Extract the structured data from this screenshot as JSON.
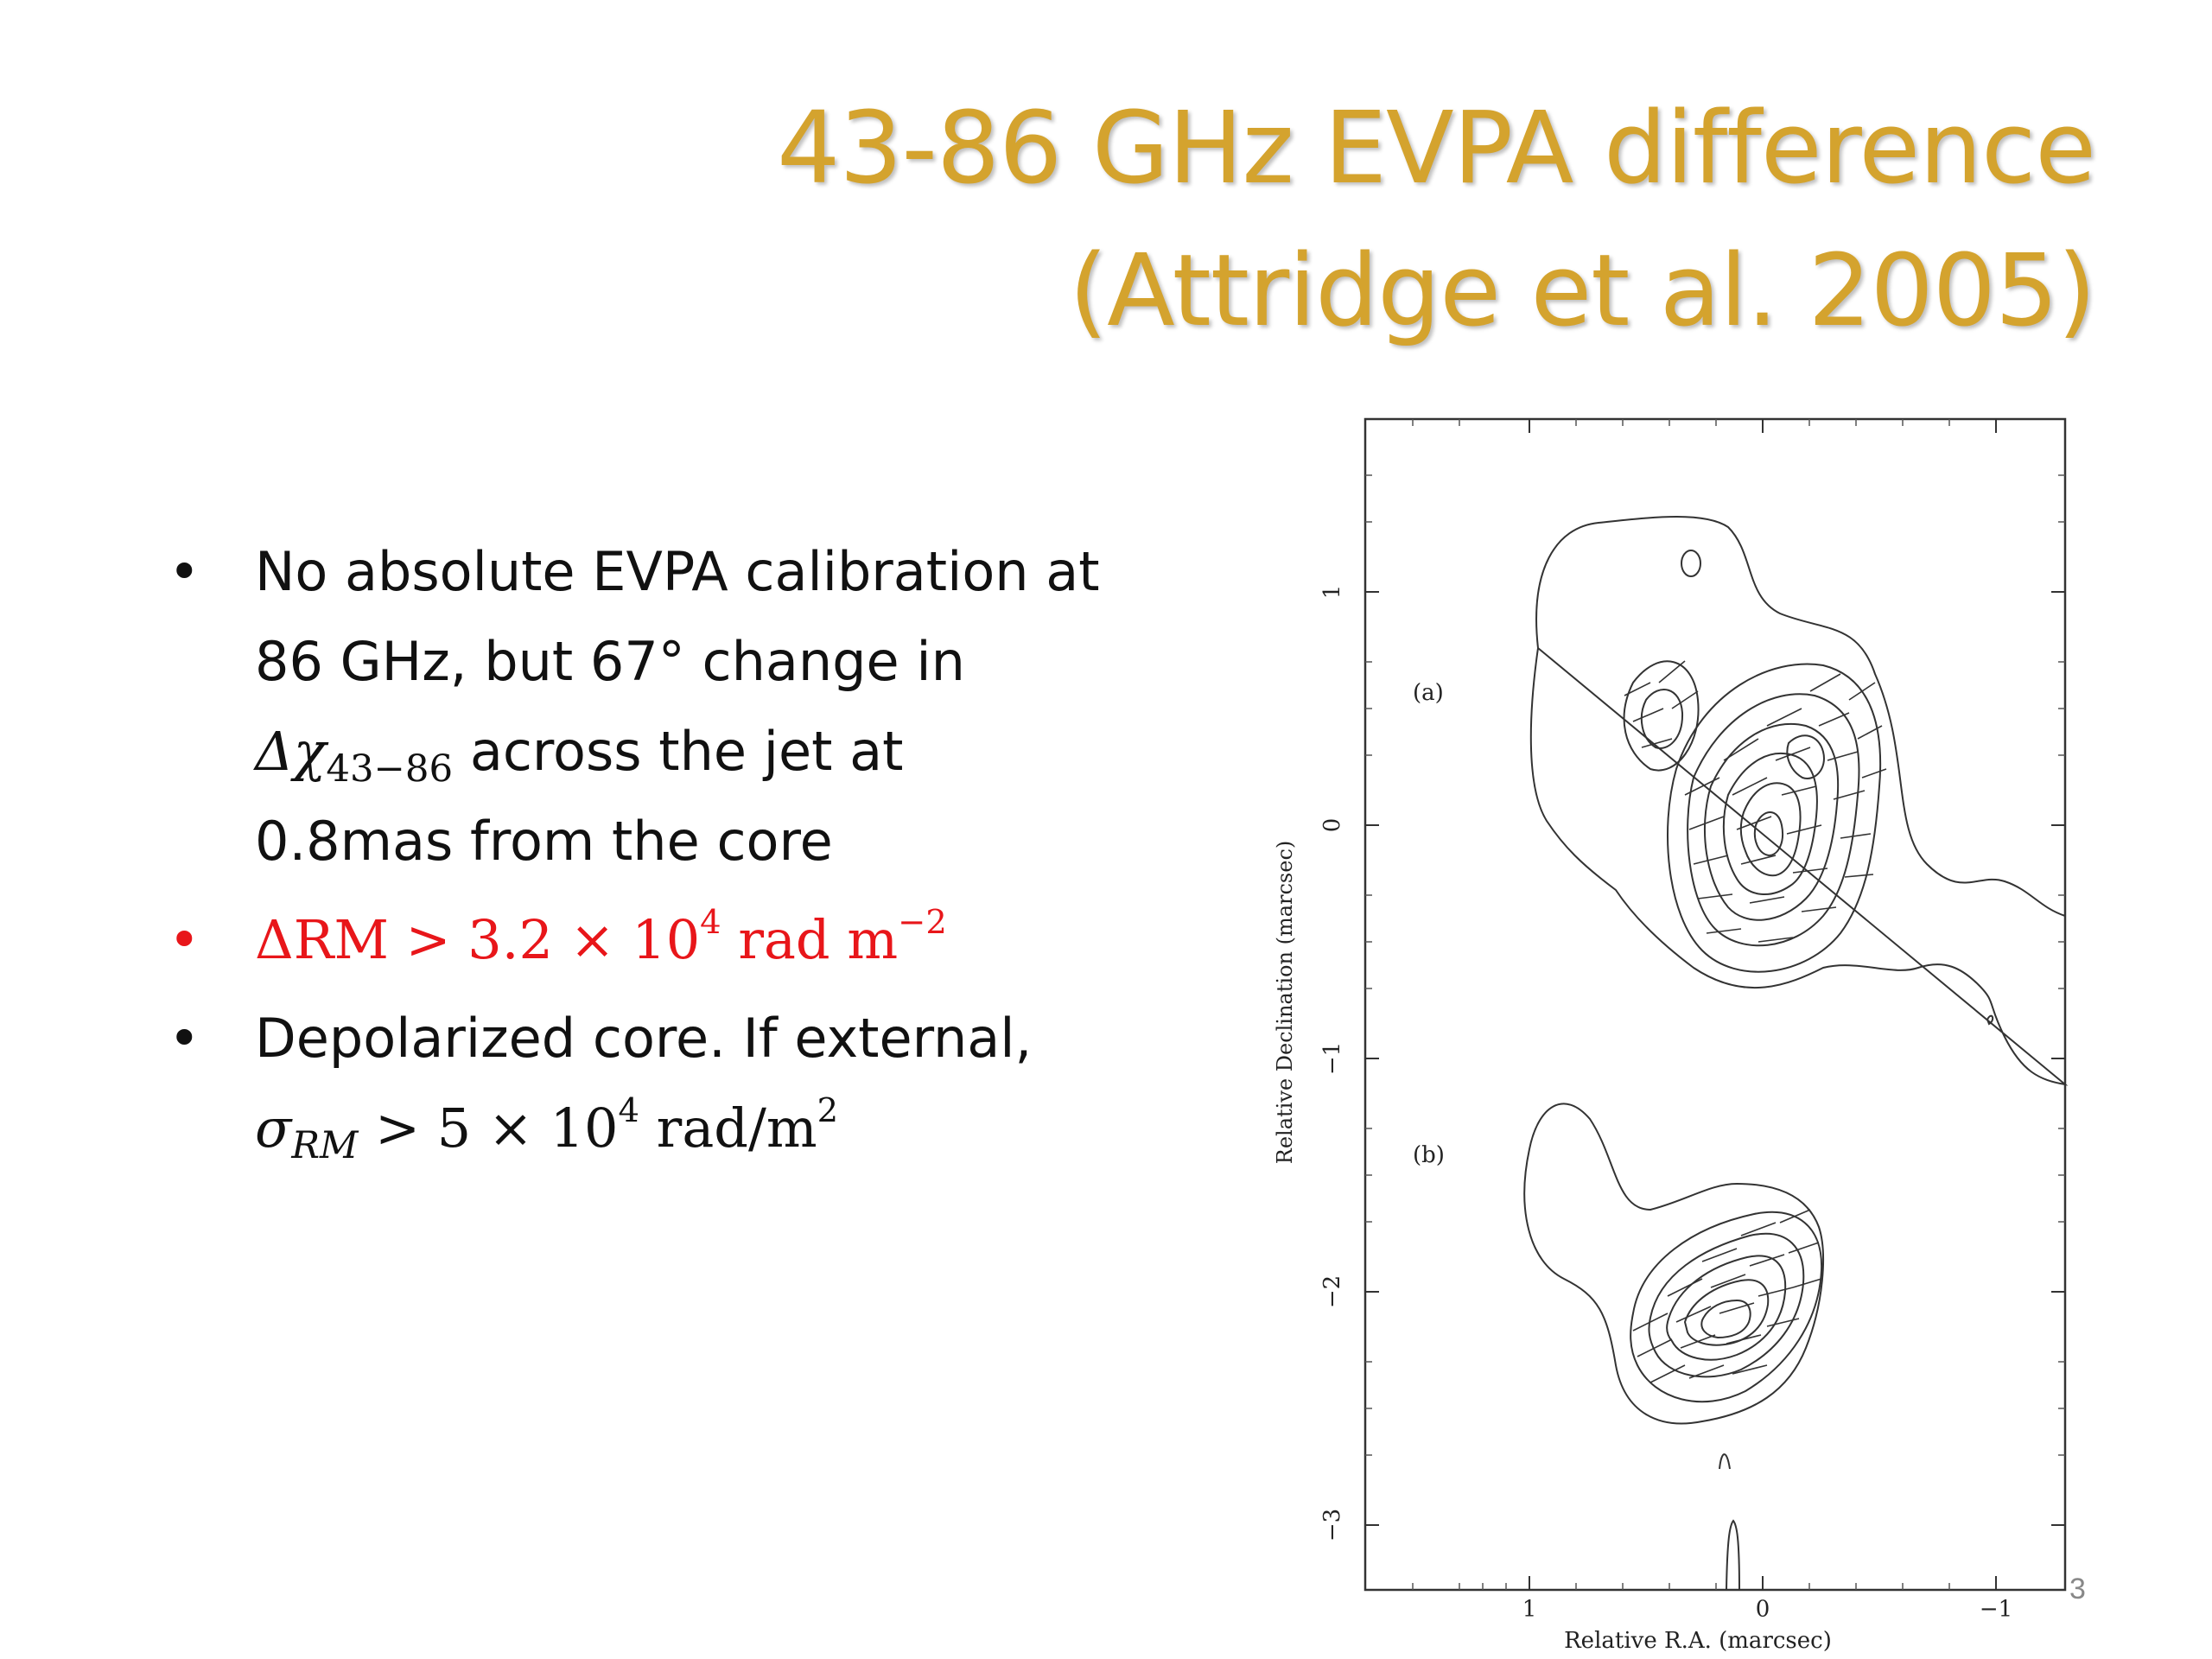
{
  "title": {
    "line1": "43-86 GHz EVPA difference",
    "line2": "(Attridge et al. 2005)"
  },
  "bullets": {
    "b1": {
      "line1": "No absolute EVPA calibration at",
      "line2": "86 GHz, but 67° change in",
      "delta_chi": "Δχ",
      "delta_chi_sub": "43−86",
      "line3_rest": " across the jet at",
      "line4": "0.8mas from the core"
    },
    "b2": {
      "prefix": "ΔRM > 3.2 × 10",
      "exp": "4",
      "unit": " rad m",
      "unit_exp": "−2",
      "color": "#E8161A"
    },
    "b3": {
      "line1": "Depolarized core. If external,",
      "sigma": "σ",
      "sigma_sub": "RM",
      "rest": " > 5 × 10",
      "exp": "4",
      "unit": "  rad/m",
      "unit_exp": "2"
    }
  },
  "figure": {
    "xlabel": "Relative R.A. (marcsec)",
    "ylabel": "Relative Declination (marcsec)",
    "xticks": [
      "1",
      "0",
      "−1"
    ],
    "yticks": [
      "1",
      "0",
      "−1",
      "−2",
      "−3"
    ],
    "panel_a": "(a)",
    "panel_b": "(b)"
  },
  "page_number": "3"
}
